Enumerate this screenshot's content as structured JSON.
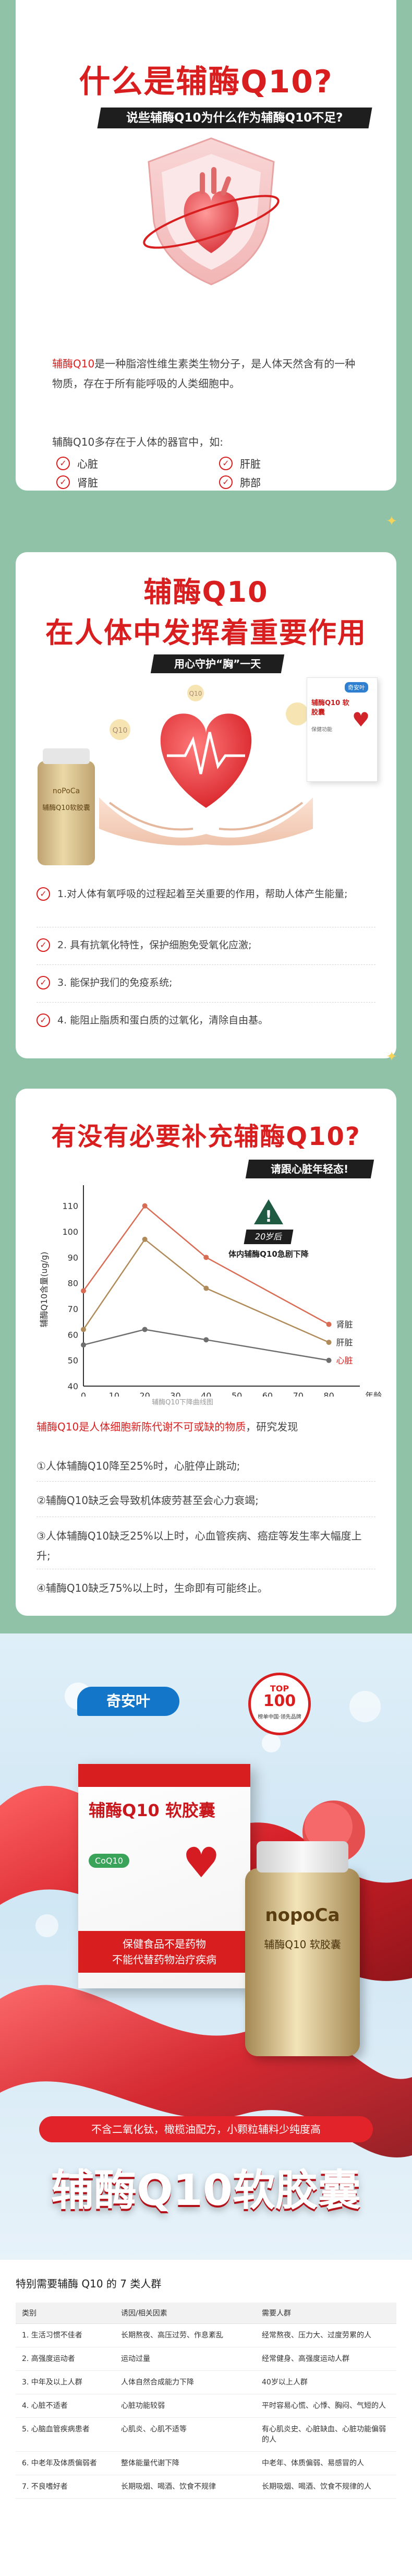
{
  "section1": {
    "title": "什么是辅酶Q10?",
    "banner": "说些辅酶Q10为什么作为辅酶Q10不足?",
    "intro_prefix": "辅酶Q10",
    "intro_text": "是一种脂溶性维生素类生物分子，是人体天然含有的一种物质，存在于所有能呼吸的人类细胞中。",
    "organs_intro": "辅酶Q10多存在于人体的器官中，如:",
    "organs": [
      "心脏",
      "肝脏",
      "肾脏",
      "肺部"
    ],
    "check_symbol": "✓"
  },
  "section2": {
    "title_line1": "辅酶Q10",
    "title_line2": "在人体中发挥着重要作用",
    "banner": "用心守护“胸”一天",
    "bottle_brand": "noPoCa",
    "bottle_label": "辅酶Q10软胶囊",
    "box_brand": "奇安叶",
    "box_product": "辅酶Q10 软胶囊",
    "box_tagline": "保健功能",
    "capsule_note": "Q10",
    "items": [
      "1.对人体有氧呼吸的过程起着至关重要的作用，帮助人体产生能量;",
      "2. 具有抗氧化特性，保护细胞免受氧化应激;",
      "3. 能保护我们的免疫系统;",
      "4. 能阻止脂质和蛋白质的过氧化，清除自由基。"
    ]
  },
  "section3": {
    "title": "有没有必要补充辅酶Q10?",
    "banner": "请跟心脏年轻态!",
    "chart_subtitle": "辅酶Q10下降曲线图",
    "warning_badge": "20岁后",
    "warning_text": "体内辅酶Q10急剧下降",
    "intro_red": "辅酶Q10是人体细胞新陈代谢不可或缺的物质",
    "intro_rest": "，研究发现",
    "findings": [
      "①人体辅酶Q10降至25%时，心脏停止跳动;",
      "②辅酶Q10缺乏会导致机体疲劳甚至会心力衰竭;",
      "③人体辅酶Q10缺乏25%以上时，心血管疾病、癌症等发生率大幅度上升;",
      "④辅酶Q10缺乏75%以上时，生命即有可能终止。"
    ]
  },
  "chart_data": {
    "type": "line",
    "title": "",
    "xlabel": "年龄",
    "ylabel": "辅酶Q10含量(ug/g)",
    "x": [
      0,
      20,
      40,
      80
    ],
    "xticks": [
      0,
      10,
      20,
      30,
      40,
      50,
      60,
      70,
      80
    ],
    "yticks": [
      40,
      50,
      60,
      70,
      80,
      90,
      100,
      110
    ],
    "xlim": [
      0,
      85
    ],
    "ylim": [
      40,
      115
    ],
    "series": [
      {
        "name": "肾脏",
        "values": [
          77,
          110,
          90,
          64
        ],
        "color": "#d86c54"
      },
      {
        "name": "肝脏",
        "values": [
          62,
          97,
          78,
          57
        ],
        "color": "#b08a58"
      },
      {
        "name": "心脏",
        "values": [
          56,
          62,
          58,
          50
        ],
        "color": "#6e6e6e"
      }
    ],
    "legend_position": "right",
    "grid": false
  },
  "promo": {
    "brand": "奇安叶",
    "badge_top": "TOP",
    "badge_num": "100",
    "badge_text": "榜单中国·领先品牌",
    "box_name": "辅酶Q10 软胶囊",
    "box_sub": "CoQ10",
    "box_tag_lines": [
      "保健食品不是药物",
      "不能代替药物治疗疾病"
    ],
    "bottle_brand": "nopoCa",
    "bottle_name": "辅酶Q10 软胶囊",
    "feature_banner": "不含二氧化钛，橄榄油配方，小颗粒辅料少纯度高",
    "big_slogan": "辅酶Q10软胶囊"
  },
  "table": {
    "heading": "特别需要辅酶 Q10 的 7 类人群",
    "columns": [
      "类别",
      "诱因/相关因素",
      "需要人群"
    ],
    "rows": [
      [
        "1. 生活习惯不佳者",
        "长期熬夜、高压过劳、作息紊乱",
        "经常熬夜、压力大、过度劳累的人"
      ],
      [
        "2. 高强度运动者",
        "运动过量",
        "经常健身、高强度运动人群"
      ],
      [
        "3. 中年及以上人群",
        "人体自然合成能力下降",
        "40岁以上人群"
      ],
      [
        "4. 心脏不适者",
        "心脏功能较弱",
        "平时容易心慌、心悸、胸闷、气短的人"
      ],
      [
        "5. 心脑血管疾病患者",
        "心肌炎、心肌不适等",
        "有心肌炎史、心脏缺血、心脏功能偏弱的人"
      ],
      [
        "6. 中老年及体质偏弱者",
        "整体能量代谢下降",
        "中老年、体质偏弱、易感冒的人"
      ],
      [
        "7. 不良嗜好者",
        "长期吸烟、喝酒、饮食不规律",
        "长期吸烟、喝酒、饮食不规律的人"
      ]
    ]
  }
}
